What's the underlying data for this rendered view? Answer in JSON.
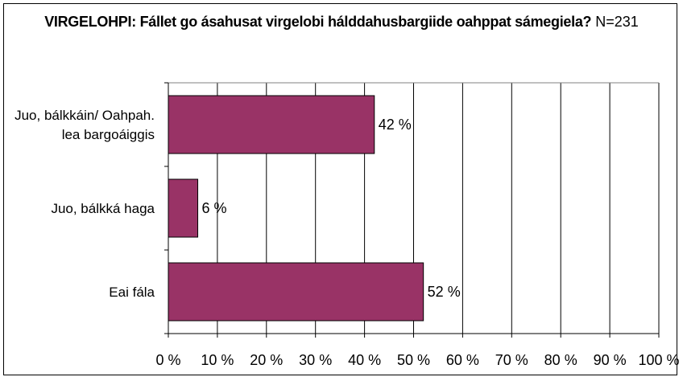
{
  "chart_data": {
    "type": "bar",
    "orientation": "horizontal",
    "title": "VIRGELOHPI: Fállet go ásahusat virgelobi hálddahusbargiide oahppat sámegiela?",
    "subtitle": "N=231",
    "categories": [
      [
        "Juo, bálkkáin/ Oahpah.",
        "lea bargoáiggis"
      ],
      [
        "Juo, bálkká haga"
      ],
      [
        "Eai fála"
      ]
    ],
    "values": [
      42,
      6,
      52
    ],
    "data_labels": [
      "42 %",
      "6 %",
      "52 %"
    ],
    "xlim": [
      0,
      100
    ],
    "x_ticks": [
      "0 %",
      "10 %",
      "20 %",
      "30 %",
      "40 %",
      "50 %",
      "60 %",
      "70 %",
      "80 %",
      "90 %",
      "100 %"
    ],
    "grid": true,
    "bar_color": "#993366",
    "legend": "none"
  }
}
